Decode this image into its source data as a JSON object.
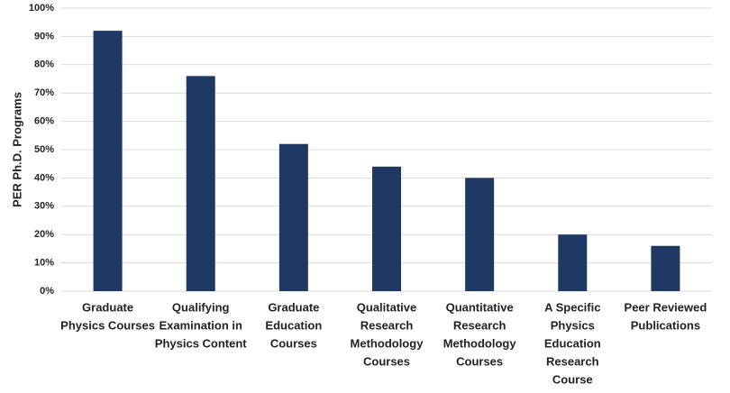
{
  "chart_data": {
    "type": "bar",
    "y_label": "PER Ph.D. Programs",
    "categories": [
      [
        "Graduate",
        "Physics Courses"
      ],
      [
        "Qualifying",
        "Examination in",
        "Physics Content"
      ],
      [
        "Graduate",
        "Education",
        "Courses"
      ],
      [
        "Qualitative",
        "Research",
        "Methodology",
        "Courses"
      ],
      [
        "Quantitative",
        "Research",
        "Methodology",
        "Courses"
      ],
      [
        "A Specific",
        "Physics",
        "Education",
        "Research",
        "Course"
      ],
      [
        "Peer Reviewed",
        "Publications"
      ]
    ],
    "values": [
      92,
      76,
      52,
      44,
      40,
      20,
      16
    ],
    "color": "#1f3864",
    "ylim": [
      0,
      100
    ],
    "yticks": [
      {
        "value": 0,
        "label": "0%"
      },
      {
        "value": 10,
        "label": "10%"
      },
      {
        "value": 20,
        "label": "20%"
      },
      {
        "value": 30,
        "label": "30%"
      },
      {
        "value": 40,
        "label": "40%"
      },
      {
        "value": 50,
        "label": "50%"
      },
      {
        "value": 60,
        "label": "60%"
      },
      {
        "value": 70,
        "label": "70%"
      },
      {
        "value": 80,
        "label": "80%"
      },
      {
        "value": 90,
        "label": "90%"
      },
      {
        "value": 100,
        "label": "100%"
      }
    ],
    "grid": true
  }
}
